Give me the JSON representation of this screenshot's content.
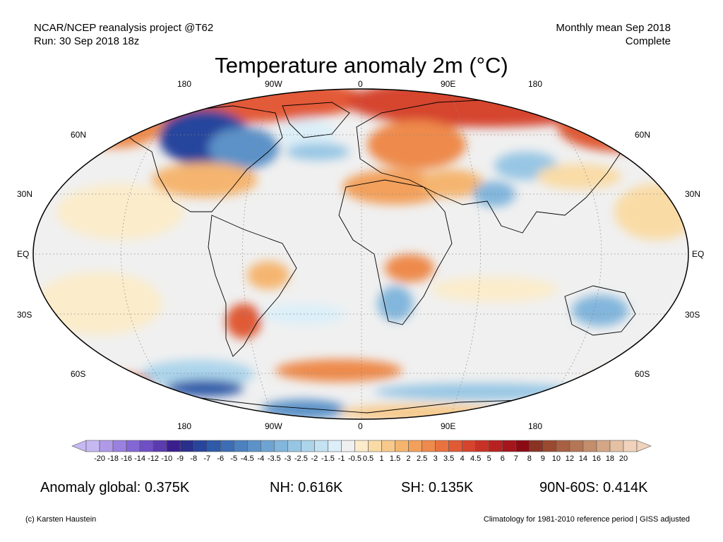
{
  "header": {
    "source_line1": "NCAR/NCEP reanalysis project @T62",
    "source_line2": "Run: 30 Sep 2018 18z",
    "period_line1": "Monthly mean Sep 2018",
    "period_line2": "Complete"
  },
  "title": "Temperature anomaly 2m (°C)",
  "map": {
    "longitude_labels_top": [
      "180",
      "90W",
      "0",
      "90E",
      "180"
    ],
    "longitude_labels_bottom": [
      "180",
      "90W",
      "0",
      "90E",
      "180"
    ],
    "latitude_labels_left": [
      "60N",
      "30N",
      "EQ",
      "30S",
      "60S"
    ],
    "latitude_labels_right": [
      "60N",
      "30N",
      "EQ",
      "30S",
      "60S"
    ],
    "colors": {
      "ocean_neutral": "#f0f0f0",
      "land_warm": "#f6c27a",
      "cold": "#3d5fa8",
      "warm": "#e0402a",
      "outline": "#000000"
    }
  },
  "colorbar": {
    "labels": [
      "-20",
      "-18",
      "-16",
      "-14",
      "-12",
      "-10",
      "-9",
      "-8",
      "-7",
      "-6",
      "-5",
      "-4.5",
      "-4",
      "-3.5",
      "-3",
      "-2.5",
      "-2",
      "-1.5",
      "-1",
      "-0.5",
      "0.5",
      "1",
      "1.5",
      "2",
      "2.5",
      "3",
      "3.5",
      "4",
      "4.5",
      "5",
      "6",
      "7",
      "8",
      "9",
      "10",
      "12",
      "14",
      "16",
      "18",
      "20"
    ],
    "colors": [
      "#c6b8f2",
      "#b09ae8",
      "#9a80df",
      "#8466d4",
      "#6e4fc6",
      "#5c3bb0",
      "#3b1e8e",
      "#2a2f8c",
      "#28459c",
      "#2e5aa8",
      "#3d6db4",
      "#4c80bf",
      "#5b92c8",
      "#6ea4d2",
      "#82b6dc",
      "#97c6e4",
      "#acd4eb",
      "#c4e2f2",
      "#dceff8",
      "#f0f0f0",
      "#fbeccb",
      "#f9dba6",
      "#f7c98a",
      "#f5b56f",
      "#f2a05b",
      "#ee8a4c",
      "#e97240",
      "#e05a36",
      "#d6442d",
      "#c83226",
      "#b72220",
      "#a5151c",
      "#8c0a14",
      "#8a3322",
      "#9a4a30",
      "#a86043",
      "#b57656",
      "#c48d6b",
      "#d4a685",
      "#e4c0a4",
      "#f0d2bd"
    ]
  },
  "stats": {
    "global": "Anomaly global: 0.375K",
    "nh": "NH: 0.616K",
    "sh": "SH: 0.135K",
    "arctic": "90N-60S: 0.414K"
  },
  "footer": {
    "credit": "(c) Karsten Haustein",
    "note": "Climatology for 1981-2010 reference period | GISS adjusted"
  }
}
